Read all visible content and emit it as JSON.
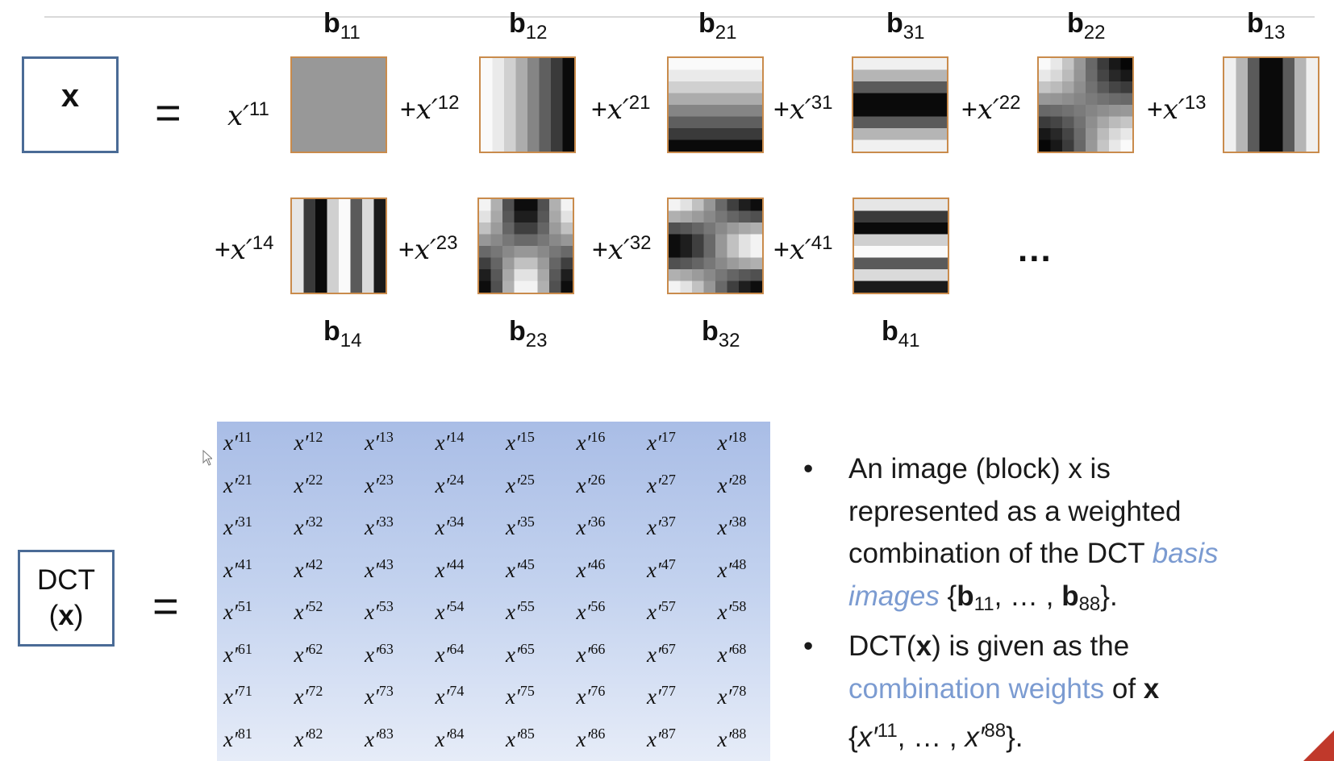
{
  "slide": {
    "x_box_label": "x",
    "equals": "=",
    "dct_box": {
      "line1": "DCT",
      "open": "(",
      "var": "x",
      "close": ")"
    },
    "ellipsis": "...",
    "basis_row1": [
      {
        "label_base": "b",
        "label_sub": "11",
        "coef_prefix": "",
        "coef_var": "x′",
        "coef_sup": "11"
      },
      {
        "label_base": "b",
        "label_sub": "12",
        "coef_prefix": "+",
        "coef_var": "x′",
        "coef_sup": "12"
      },
      {
        "label_base": "b",
        "label_sub": "21",
        "coef_prefix": "+",
        "coef_var": "x′",
        "coef_sup": "21"
      },
      {
        "label_base": "b",
        "label_sub": "31",
        "coef_prefix": "+",
        "coef_var": "x′",
        "coef_sup": "31"
      },
      {
        "label_base": "b",
        "label_sub": "22",
        "coef_prefix": "+",
        "coef_var": "x′",
        "coef_sup": "22"
      },
      {
        "label_base": "b",
        "label_sub": "13",
        "coef_prefix": "+",
        "coef_var": "x′",
        "coef_sup": "13"
      }
    ],
    "basis_row2": [
      {
        "label_base": "b",
        "label_sub": "14",
        "coef_prefix": "+",
        "coef_var": "x′",
        "coef_sup": "14"
      },
      {
        "label_base": "b",
        "label_sub": "23",
        "coef_prefix": "+",
        "coef_var": "x′",
        "coef_sup": "23"
      },
      {
        "label_base": "b",
        "label_sub": "32",
        "coef_prefix": "+",
        "coef_var": "x′",
        "coef_sup": "32"
      },
      {
        "label_base": "b",
        "label_sub": "41",
        "coef_prefix": "+",
        "coef_var": "x′",
        "coef_sup": "41"
      }
    ],
    "matrix": {
      "var": "x′",
      "rows": [
        [
          "11",
          "12",
          "13",
          "14",
          "15",
          "16",
          "17",
          "18"
        ],
        [
          "21",
          "22",
          "23",
          "24",
          "25",
          "26",
          "27",
          "28"
        ],
        [
          "31",
          "32",
          "33",
          "34",
          "35",
          "36",
          "37",
          "38"
        ],
        [
          "41",
          "42",
          "43",
          "44",
          "45",
          "46",
          "47",
          "48"
        ],
        [
          "51",
          "52",
          "53",
          "54",
          "55",
          "56",
          "57",
          "58"
        ],
        [
          "61",
          "62",
          "63",
          "64",
          "65",
          "66",
          "67",
          "68"
        ],
        [
          "71",
          "72",
          "73",
          "74",
          "75",
          "76",
          "77",
          "78"
        ],
        [
          "81",
          "82",
          "83",
          "84",
          "85",
          "86",
          "87",
          "88"
        ]
      ]
    },
    "bullets": {
      "dot": "•",
      "b1": {
        "line1": "An image (block) x is",
        "line2": "represented as a weighted",
        "line3_pre": "combination of the DCT ",
        "line3_accent": "basis",
        "line4_accent": "images",
        "line4_open": " {",
        "b_first": "b",
        "sub_first": "11",
        "mid": ", … , ",
        "b_last": "b",
        "sub_last": "88",
        "line4_close": "}."
      },
      "b2": {
        "pre": "DCT(",
        "var": "x",
        "post": ") is given as the",
        "accent": "combination weights",
        "of": " of ",
        "var2": "x",
        "open": "{",
        "v1": "x′",
        "s1": "11",
        "mid": ", … , ",
        "v2": "x′",
        "s2": "88",
        "close": "}."
      }
    },
    "colors": {
      "box_border": "#4a6b96",
      "tile_border": "#c98b4c",
      "accent": "#7b9bd1",
      "matrix_top": "#a9bde6",
      "matrix_bottom": "#e6ecf8"
    }
  }
}
